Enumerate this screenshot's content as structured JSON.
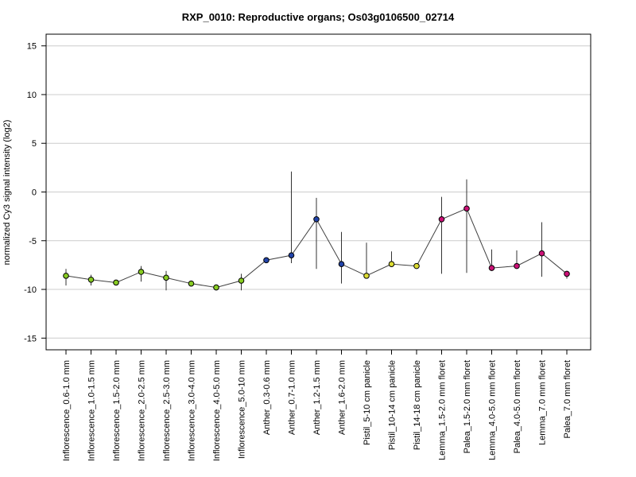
{
  "chart_data": {
    "type": "line",
    "title": "RXP_0010: Reproductive organs; Os03g0106500_02714",
    "xlabel": "",
    "ylabel": "normalized Cy3 signal intensity (log2)",
    "ylim": [
      -16.2,
      16.2
    ],
    "yticks": [
      -15,
      -10,
      -5,
      0,
      5,
      10,
      15
    ],
    "grid": true,
    "legend": "none",
    "line_color": "#404040",
    "categories": [
      "Inflorescence_0.6-1.0 mm",
      "Inflorescence_1.0-1.5 mm",
      "Inflorescence_1.5-2.0 mm",
      "Inflorescence_2.0-2.5 mm",
      "Inflorescence_2.5-3.0 mm",
      "Inflorescence_3.0-4.0 mm",
      "Inflorescence_4.0-5.0 mm",
      "Inflorescence_5.0-10 mm",
      "Anther_0.3-0.6 mm",
      "Anther_0.7-1.0 mm",
      "Anther_1.2-1.5 mm",
      "Anther_1.6-2.0 mm",
      "Pistil_5-10 cm panicle",
      "Pistil_10-14 cm panicle",
      "Pistil_14-18 cm panicle",
      "Lemma_1.5-2.0 mm floret",
      "Palea_1.5-2.0 mm floret",
      "Lemma_4.0-5.0 mm floret",
      "Palea_4.0-5.0 mm floret",
      "Lemma_7.0 mm floret",
      "Palea_7.0 mm floret"
    ],
    "values": [
      -8.6,
      -9.0,
      -9.3,
      -8.2,
      -8.8,
      -9.4,
      -9.8,
      -9.1,
      -7.0,
      -6.5,
      -2.8,
      -7.4,
      -8.6,
      -7.4,
      -7.6,
      -2.8,
      -1.7,
      -7.8,
      -7.6,
      -6.3,
      -8.4
    ],
    "error_low": [
      -9.6,
      -9.6,
      -9.5,
      -9.2,
      -10.1,
      -9.5,
      -10.1,
      -10.1,
      -7.1,
      -7.3,
      -7.9,
      -9.4,
      -8.8,
      -7.5,
      -7.8,
      -8.4,
      -8.3,
      -8.1,
      -7.8,
      -8.7,
      -8.9
    ],
    "error_high": [
      -7.9,
      -8.5,
      -9.1,
      -7.6,
      -8.1,
      -9.2,
      -9.5,
      -8.4,
      -6.9,
      2.1,
      -0.6,
      -4.1,
      -5.2,
      -6.1,
      -7.4,
      -0.5,
      1.3,
      -5.9,
      -6.0,
      -3.1,
      -8.1
    ],
    "point_colors": [
      "#88cc22",
      "#88cc22",
      "#88cc22",
      "#88cc22",
      "#88cc22",
      "#88cc22",
      "#88cc22",
      "#88cc22",
      "#2244aa",
      "#2244aa",
      "#2244aa",
      "#2244aa",
      "#dddd33",
      "#dddd33",
      "#dddd33",
      "#cc1177",
      "#cc1177",
      "#cc1177",
      "#cc1177",
      "#cc1177",
      "#cc1177"
    ]
  }
}
